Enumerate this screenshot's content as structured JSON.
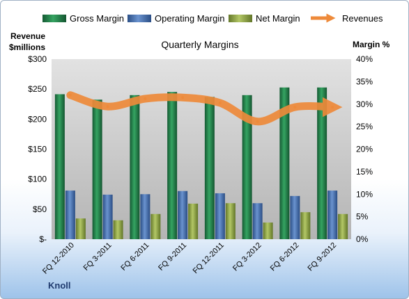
{
  "chart_data": {
    "type": "bar",
    "title": "Quarterly Margins",
    "ylabel_left": "Revenue $millions",
    "ylabel_left_lines": [
      "Revenue",
      "$millions"
    ],
    "ylabel_right": "Margin %",
    "categories": [
      "FQ 12-2010",
      "FQ 3-2011",
      "FQ 6-2011",
      "FQ 9-2011",
      "FQ 12-2011",
      "FQ 3-2012",
      "FQ 6-2012",
      "FQ 9-2012"
    ],
    "series": [
      {
        "name": "Gross Margin",
        "axis": "right",
        "kind": "bar",
        "color": "#1f7a45",
        "values": [
          32.2,
          31.0,
          32.0,
          32.7,
          31.6,
          32.0,
          33.7,
          33.7
        ]
      },
      {
        "name": "Operating Margin",
        "axis": "right",
        "kind": "bar",
        "color": "#3f6bb0",
        "values": [
          10.8,
          9.9,
          10.0,
          10.7,
          10.2,
          8.0,
          9.6,
          10.8
        ]
      },
      {
        "name": "Net Margin",
        "axis": "right",
        "kind": "bar",
        "color": "#8ea640",
        "values": [
          4.6,
          4.2,
          5.6,
          7.9,
          8.0,
          3.7,
          6.0,
          5.6
        ]
      },
      {
        "name": "Revenues",
        "axis": "left",
        "kind": "line",
        "color": "#ee8a3a",
        "values": [
          240,
          221,
          234,
          236,
          227,
          196,
          220,
          220
        ]
      }
    ],
    "ylim_left": [
      0,
      300
    ],
    "ylim_right": [
      0,
      40
    ],
    "left_ticks": [
      "$-",
      "$50",
      "$100",
      "$150",
      "$200",
      "$250",
      "$300"
    ],
    "right_ticks": [
      "0%",
      "5%",
      "10%",
      "15%",
      "20%",
      "25%",
      "30%",
      "35%",
      "40%"
    ],
    "grid": false,
    "legend_position": "top"
  },
  "footer": {
    "brand": "Knoll"
  }
}
